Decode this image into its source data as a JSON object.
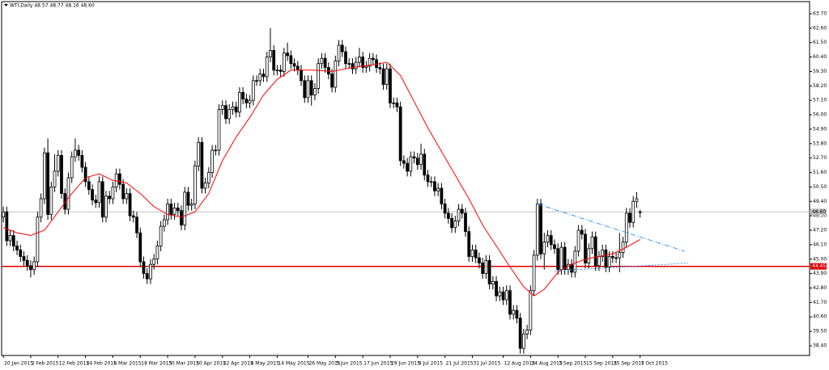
{
  "chart_data": {
    "type": "candlestick",
    "title": "WTI,Daily 48.57 48.77 48.16 48.60",
    "up_color": "#ffffff",
    "down_color": "#000000",
    "candles": [
      [
        48.2,
        49.0,
        47.8,
        48.6
      ],
      [
        48.6,
        49.0,
        46.0,
        46.4
      ],
      [
        46.4,
        47.2,
        46.0,
        46.8
      ],
      [
        46.8,
        47.2,
        45.6,
        46.0
      ],
      [
        46.0,
        46.4,
        45.3,
        45.7
      ],
      [
        45.7,
        46.1,
        44.8,
        45.2
      ],
      [
        45.2,
        45.6,
        44.5,
        44.9
      ],
      [
        44.9,
        45.3,
        44.1,
        44.5
      ],
      [
        44.5,
        44.9,
        43.6,
        44.2
      ],
      [
        44.2,
        45.2,
        43.8,
        44.8
      ],
      [
        44.8,
        48.6,
        44.4,
        48.2
      ],
      [
        48.2,
        50.0,
        47.8,
        49.6
      ],
      [
        49.6,
        53.5,
        49.2,
        53.1
      ],
      [
        53.1,
        54.2,
        48.0,
        48.4
      ],
      [
        48.4,
        50.9,
        48.0,
        50.5
      ],
      [
        50.5,
        53.0,
        50.1,
        51.7
      ],
      [
        51.7,
        53.3,
        51.3,
        52.9
      ],
      [
        52.9,
        53.3,
        49.6,
        50.0
      ],
      [
        50.0,
        50.4,
        48.4,
        48.8
      ],
      [
        48.8,
        51.6,
        48.4,
        51.2
      ],
      [
        51.2,
        53.2,
        50.8,
        52.8
      ],
      [
        52.8,
        54.2,
        52.4,
        53.3
      ],
      [
        53.3,
        53.7,
        52.5,
        52.9
      ],
      [
        52.9,
        53.3,
        51.6,
        52.0
      ],
      [
        52.0,
        52.4,
        50.5,
        50.9
      ],
      [
        50.9,
        51.3,
        49.9,
        50.3
      ],
      [
        50.3,
        50.7,
        49.1,
        49.5
      ],
      [
        49.5,
        49.9,
        48.9,
        49.3
      ],
      [
        49.3,
        51.3,
        48.9,
        50.9
      ],
      [
        50.9,
        51.3,
        47.8,
        48.2
      ],
      [
        48.2,
        50.2,
        47.8,
        49.8
      ],
      [
        49.8,
        50.2,
        49.2,
        49.6
      ],
      [
        49.6,
        50.9,
        49.2,
        50.5
      ],
      [
        50.5,
        51.9,
        50.1,
        51.5
      ],
      [
        51.5,
        51.9,
        50.3,
        50.7
      ],
      [
        50.7,
        51.1,
        49.2,
        49.6
      ],
      [
        49.6,
        50.4,
        49.2,
        50.0
      ],
      [
        50.0,
        50.4,
        47.9,
        48.3
      ],
      [
        48.3,
        48.7,
        47.8,
        48.2
      ],
      [
        48.2,
        48.6,
        46.6,
        47.0
      ],
      [
        47.0,
        47.4,
        44.4,
        44.8
      ],
      [
        44.8,
        45.2,
        43.5,
        43.9
      ],
      [
        43.9,
        44.3,
        43.1,
        43.5
      ],
      [
        43.5,
        45.0,
        43.1,
        44.6
      ],
      [
        44.6,
        45.4,
        44.2,
        45.0
      ],
      [
        45.0,
        46.4,
        44.6,
        46.0
      ],
      [
        46.0,
        47.9,
        45.6,
        47.5
      ],
      [
        47.5,
        48.4,
        47.1,
        48.0
      ],
      [
        48.0,
        49.6,
        47.6,
        49.2
      ],
      [
        49.2,
        49.6,
        48.0,
        48.4
      ],
      [
        48.4,
        49.3,
        48.0,
        48.9
      ],
      [
        48.9,
        49.3,
        48.3,
        48.7
      ],
      [
        48.7,
        49.1,
        47.2,
        47.6
      ],
      [
        47.6,
        50.5,
        47.2,
        50.1
      ],
      [
        50.1,
        50.5,
        48.7,
        49.1
      ],
      [
        49.1,
        49.6,
        48.7,
        49.2
      ],
      [
        49.2,
        52.5,
        48.8,
        52.1
      ],
      [
        52.1,
        54.3,
        51.7,
        53.9
      ],
      [
        53.9,
        54.3,
        50.0,
        50.4
      ],
      [
        50.4,
        51.2,
        50.0,
        50.8
      ],
      [
        50.8,
        52.0,
        50.4,
        51.6
      ],
      [
        51.6,
        53.7,
        51.2,
        53.3
      ],
      [
        53.3,
        53.7,
        52.9,
        53.3
      ],
      [
        53.3,
        56.8,
        52.9,
        56.4
      ],
      [
        56.4,
        57.1,
        56.0,
        56.7
      ],
      [
        56.7,
        57.1,
        55.3,
        55.7
      ],
      [
        55.7,
        56.8,
        55.3,
        56.4
      ],
      [
        56.4,
        57.0,
        56.0,
        56.6
      ],
      [
        56.6,
        57.0,
        55.8,
        56.2
      ],
      [
        56.2,
        58.1,
        55.8,
        57.7
      ],
      [
        57.7,
        58.1,
        56.8,
        57.2
      ],
      [
        57.2,
        57.6,
        56.5,
        56.9
      ],
      [
        56.9,
        57.5,
        56.5,
        57.1
      ],
      [
        57.1,
        59.0,
        56.7,
        58.6
      ],
      [
        58.6,
        59.0,
        58.2,
        58.6
      ],
      [
        58.6,
        59.5,
        58.2,
        59.1
      ],
      [
        59.1,
        59.5,
        58.5,
        58.9
      ],
      [
        58.9,
        60.8,
        58.5,
        60.4
      ],
      [
        60.4,
        62.6,
        60.0,
        60.9
      ],
      [
        60.9,
        61.3,
        59.0,
        59.4
      ],
      [
        59.4,
        59.8,
        59.0,
        59.4
      ],
      [
        59.4,
        59.8,
        58.9,
        59.3
      ],
      [
        59.3,
        61.1,
        58.9,
        60.7
      ],
      [
        60.7,
        61.5,
        60.1,
        60.5
      ],
      [
        60.5,
        60.9,
        59.5,
        59.9
      ],
      [
        59.9,
        60.3,
        59.3,
        59.7
      ],
      [
        59.7,
        60.1,
        59.0,
        59.4
      ],
      [
        59.4,
        59.8,
        58.2,
        58.6
      ],
      [
        58.6,
        59.0,
        56.9,
        57.3
      ],
      [
        57.3,
        59.0,
        56.9,
        58.6
      ],
      [
        58.6,
        59.0,
        56.7,
        57.5
      ],
      [
        57.5,
        58.4,
        57.1,
        58.0
      ],
      [
        58.0,
        60.3,
        57.6,
        59.9
      ],
      [
        59.9,
        60.7,
        59.5,
        60.3
      ],
      [
        60.3,
        60.7,
        59.2,
        59.6
      ],
      [
        59.6,
        60.0,
        58.7,
        59.1
      ],
      [
        59.1,
        59.5,
        57.7,
        58.1
      ],
      [
        58.1,
        60.5,
        57.7,
        60.1
      ],
      [
        60.1,
        61.7,
        59.7,
        61.3
      ],
      [
        61.3,
        61.7,
        60.4,
        60.8
      ],
      [
        60.8,
        61.2,
        59.5,
        59.9
      ],
      [
        59.9,
        60.3,
        59.5,
        59.9
      ],
      [
        59.9,
        60.3,
        59.1,
        59.5
      ],
      [
        59.5,
        60.4,
        59.1,
        60.0
      ],
      [
        60.0,
        61.1,
        59.6,
        60.4
      ],
      [
        60.4,
        60.8,
        59.2,
        59.6
      ],
      [
        59.6,
        60.1,
        59.2,
        59.7
      ],
      [
        59.7,
        60.7,
        59.3,
        60.3
      ],
      [
        60.3,
        60.7,
        59.8,
        60.2
      ],
      [
        60.2,
        60.6,
        59.2,
        59.6
      ],
      [
        59.6,
        60.0,
        59.1,
        59.5
      ],
      [
        59.5,
        59.9,
        57.9,
        58.3
      ],
      [
        58.3,
        59.9,
        57.9,
        59.5
      ],
      [
        59.5,
        59.9,
        56.5,
        56.9
      ],
      [
        56.9,
        57.3,
        56.5,
        56.9
      ],
      [
        56.9,
        57.3,
        56.2,
        56.6
      ],
      [
        56.6,
        57.0,
        52.1,
        52.5
      ],
      [
        52.5,
        52.9,
        51.9,
        52.3
      ],
      [
        52.3,
        52.7,
        51.3,
        51.7
      ],
      [
        51.7,
        53.2,
        51.3,
        52.8
      ],
      [
        52.8,
        53.2,
        52.3,
        52.7
      ],
      [
        52.7,
        53.1,
        51.8,
        52.2
      ],
      [
        52.2,
        53.8,
        51.8,
        53.0
      ],
      [
        53.0,
        53.4,
        51.0,
        51.4
      ],
      [
        51.4,
        51.8,
        50.5,
        50.9
      ],
      [
        50.9,
        51.3,
        50.5,
        50.9
      ],
      [
        50.9,
        51.3,
        49.8,
        50.2
      ],
      [
        50.2,
        50.8,
        49.8,
        50.4
      ],
      [
        50.4,
        50.8,
        48.8,
        49.2
      ],
      [
        49.2,
        49.6,
        48.1,
        48.5
      ],
      [
        48.5,
        48.9,
        47.7,
        48.1
      ],
      [
        48.1,
        48.5,
        47.0,
        47.4
      ],
      [
        47.4,
        48.3,
        47.0,
        47.9
      ],
      [
        47.9,
        49.2,
        47.5,
        48.8
      ],
      [
        48.8,
        49.2,
        48.1,
        48.5
      ],
      [
        48.5,
        48.9,
        46.7,
        47.1
      ],
      [
        47.1,
        47.5,
        44.8,
        45.2
      ],
      [
        45.2,
        46.1,
        44.8,
        45.7
      ],
      [
        45.7,
        46.1,
        44.7,
        45.1
      ],
      [
        45.1,
        45.5,
        44.3,
        44.7
      ],
      [
        44.7,
        45.1,
        43.5,
        43.9
      ],
      [
        43.9,
        45.3,
        43.5,
        44.9
      ],
      [
        44.9,
        45.3,
        42.7,
        43.1
      ],
      [
        43.1,
        43.7,
        42.7,
        43.3
      ],
      [
        43.3,
        43.7,
        41.8,
        42.2
      ],
      [
        42.2,
        42.9,
        41.8,
        42.5
      ],
      [
        42.5,
        42.9,
        41.5,
        41.9
      ],
      [
        41.9,
        43.0,
        41.5,
        42.6
      ],
      [
        42.6,
        43.0,
        40.4,
        40.8
      ],
      [
        40.8,
        41.5,
        40.4,
        41.1
      ],
      [
        41.1,
        41.5,
        40.1,
        40.5
      ],
      [
        40.5,
        40.9,
        37.8,
        38.2
      ],
      [
        38.2,
        39.7,
        37.8,
        39.3
      ],
      [
        39.3,
        40.0,
        38.9,
        39.6
      ],
      [
        39.6,
        43.0,
        39.2,
        42.6
      ],
      [
        42.6,
        45.7,
        42.2,
        45.3
      ],
      [
        45.3,
        49.6,
        44.9,
        49.2
      ],
      [
        49.2,
        49.6,
        45.0,
        45.4
      ],
      [
        45.4,
        47.0,
        44.2,
        46.3
      ],
      [
        46.3,
        47.2,
        45.9,
        46.8
      ],
      [
        46.8,
        47.2,
        45.7,
        46.1
      ],
      [
        46.1,
        46.5,
        45.4,
        45.8
      ],
      [
        45.8,
        46.2,
        43.8,
        44.2
      ],
      [
        44.2,
        46.3,
        43.8,
        45.9
      ],
      [
        45.9,
        46.3,
        43.8,
        44.2
      ],
      [
        44.2,
        45.0,
        43.8,
        44.6
      ],
      [
        44.6,
        45.0,
        43.6,
        44.0
      ],
      [
        44.0,
        46.0,
        43.6,
        45.6
      ],
      [
        45.6,
        47.6,
        45.2,
        47.2
      ],
      [
        47.2,
        47.6,
        46.5,
        46.9
      ],
      [
        46.9,
        47.3,
        44.3,
        44.7
      ],
      [
        44.7,
        46.2,
        44.3,
        45.8
      ],
      [
        45.8,
        47.1,
        45.4,
        46.7
      ],
      [
        46.7,
        47.1,
        44.1,
        44.5
      ],
      [
        44.5,
        45.6,
        44.1,
        45.2
      ],
      [
        45.2,
        46.1,
        44.8,
        45.7
      ],
      [
        45.7,
        46.1,
        44.0,
        44.4
      ],
      [
        44.4,
        45.6,
        44.0,
        45.2
      ],
      [
        45.2,
        45.6,
        44.7,
        45.1
      ],
      [
        45.1,
        45.5,
        44.7,
        45.1
      ],
      [
        45.1,
        47.0,
        44.0,
        45.5
      ],
      [
        45.5,
        46.7,
        45.1,
        46.3
      ],
      [
        46.3,
        48.9,
        45.9,
        48.5
      ],
      [
        48.5,
        48.9,
        47.4,
        47.8
      ],
      [
        47.8,
        49.8,
        47.4,
        49.4
      ],
      [
        49.4,
        50.1,
        48.9,
        49.6
      ],
      [
        48.57,
        48.77,
        48.16,
        48.6
      ]
    ],
    "ma": {
      "color": "#ff0000",
      "x": [
        0,
        4,
        8,
        12,
        16,
        20,
        24,
        28,
        32,
        36,
        40,
        44,
        48,
        52,
        56,
        60,
        64,
        68,
        72,
        76,
        80,
        84,
        90,
        96,
        102,
        108,
        112,
        116,
        120,
        124,
        128,
        132,
        136,
        140,
        144,
        148,
        152,
        155,
        158,
        162,
        166,
        170,
        174,
        178,
        182,
        186
      ],
      "values": [
        47.4,
        47.0,
        46.8,
        47.2,
        48.6,
        50.0,
        51.2,
        51.5,
        51.0,
        50.8,
        50.0,
        49.0,
        48.4,
        48.2,
        48.6,
        50.0,
        52.5,
        54.3,
        55.8,
        57.5,
        58.7,
        59.4,
        59.4,
        59.3,
        59.6,
        59.8,
        60.0,
        59.0,
        57.0,
        55.0,
        53.2,
        51.4,
        49.6,
        47.6,
        46.0,
        44.4,
        42.9,
        42.2,
        42.7,
        44.0,
        44.6,
        45.0,
        45.2,
        45.4,
        45.9,
        46.5
      ]
    },
    "trendlines": [
      {
        "color": "#3399ff",
        "x": [
          156,
          199
        ],
        "values": [
          49.2,
          45.6
        ]
      },
      {
        "color": "#3399ff",
        "x": [
          161,
          200
        ],
        "values": [
          44.1,
          44.7
        ]
      }
    ],
    "levels": [
      {
        "value": 48.6,
        "label": "48.60",
        "color": "#c0c0c0"
      },
      {
        "value": 44.45,
        "label": "44.45",
        "color": "#e00000"
      }
    ],
    "xlim": [
      -0.5,
      235.5
    ],
    "ylim": [
      37.66,
      64.62
    ],
    "xticks": [
      {
        "value": 0,
        "label": "20 Jan 2015"
      },
      {
        "value": 8,
        "label": "2 Feb 2015"
      },
      {
        "value": 16,
        "label": "12 Feb 2015"
      },
      {
        "value": 24,
        "label": "24 Feb 2015"
      },
      {
        "value": 32,
        "label": "6 Mar 2015"
      },
      {
        "value": 40,
        "label": "18 Mar 2015"
      },
      {
        "value": 48,
        "label": "30 Mar 2015"
      },
      {
        "value": 56,
        "label": "10 Apr 2015"
      },
      {
        "value": 64,
        "label": "22 Apr 2015"
      },
      {
        "value": 72,
        "label": "4 May 2015"
      },
      {
        "value": 80,
        "label": "14 May 2015"
      },
      {
        "value": 89,
        "label": "26 May 2015"
      },
      {
        "value": 97,
        "label": "5 Jun 2015"
      },
      {
        "value": 105,
        "label": "17 Jun 2015"
      },
      {
        "value": 113,
        "label": "29 Jun 2015"
      },
      {
        "value": 121,
        "label": "9 Jul 2015"
      },
      {
        "value": 129,
        "label": "21 Jul 2015"
      },
      {
        "value": 137,
        "label": "31 Jul 2015"
      },
      {
        "value": 146,
        "label": "12 Aug 2015"
      },
      {
        "value": 154,
        "label": "24 Aug 2015"
      },
      {
        "value": 162,
        "label": "3 Sep 2015"
      },
      {
        "value": 170,
        "label": "15 Sep 2015"
      },
      {
        "value": 178,
        "label": "25 Sep 2015"
      },
      {
        "value": 186,
        "label": "7 Oct 2015"
      }
    ],
    "yticks": [
      {
        "value": 63.7,
        "label": "63.70"
      },
      {
        "value": 62.6,
        "label": "62.60"
      },
      {
        "value": 61.5,
        "label": "61.50"
      },
      {
        "value": 60.4,
        "label": "60.40"
      },
      {
        "value": 59.3,
        "label": "59.30"
      },
      {
        "value": 58.2,
        "label": "58.20"
      },
      {
        "value": 57.1,
        "label": "57.10"
      },
      {
        "value": 56.0,
        "label": "56.00"
      },
      {
        "value": 54.9,
        "label": "54.90"
      },
      {
        "value": 53.8,
        "label": "53.80"
      },
      {
        "value": 52.7,
        "label": "52.70"
      },
      {
        "value": 51.6,
        "label": "51.60"
      },
      {
        "value": 50.5,
        "label": "50.50"
      },
      {
        "value": 49.4,
        "label": "49.40"
      },
      {
        "value": 48.3,
        "label": "48.30"
      },
      {
        "value": 47.2,
        "label": "47.20"
      },
      {
        "value": 46.1,
        "label": "46.10"
      },
      {
        "value": 45.0,
        "label": "45.00"
      },
      {
        "value": 43.9,
        "label": "43.90"
      },
      {
        "value": 42.8,
        "label": "42.80"
      },
      {
        "value": 41.7,
        "label": "41.70"
      },
      {
        "value": 40.6,
        "label": "40.60"
      },
      {
        "value": 39.5,
        "label": "39.50"
      },
      {
        "value": 38.4,
        "label": "38.40"
      }
    ]
  }
}
